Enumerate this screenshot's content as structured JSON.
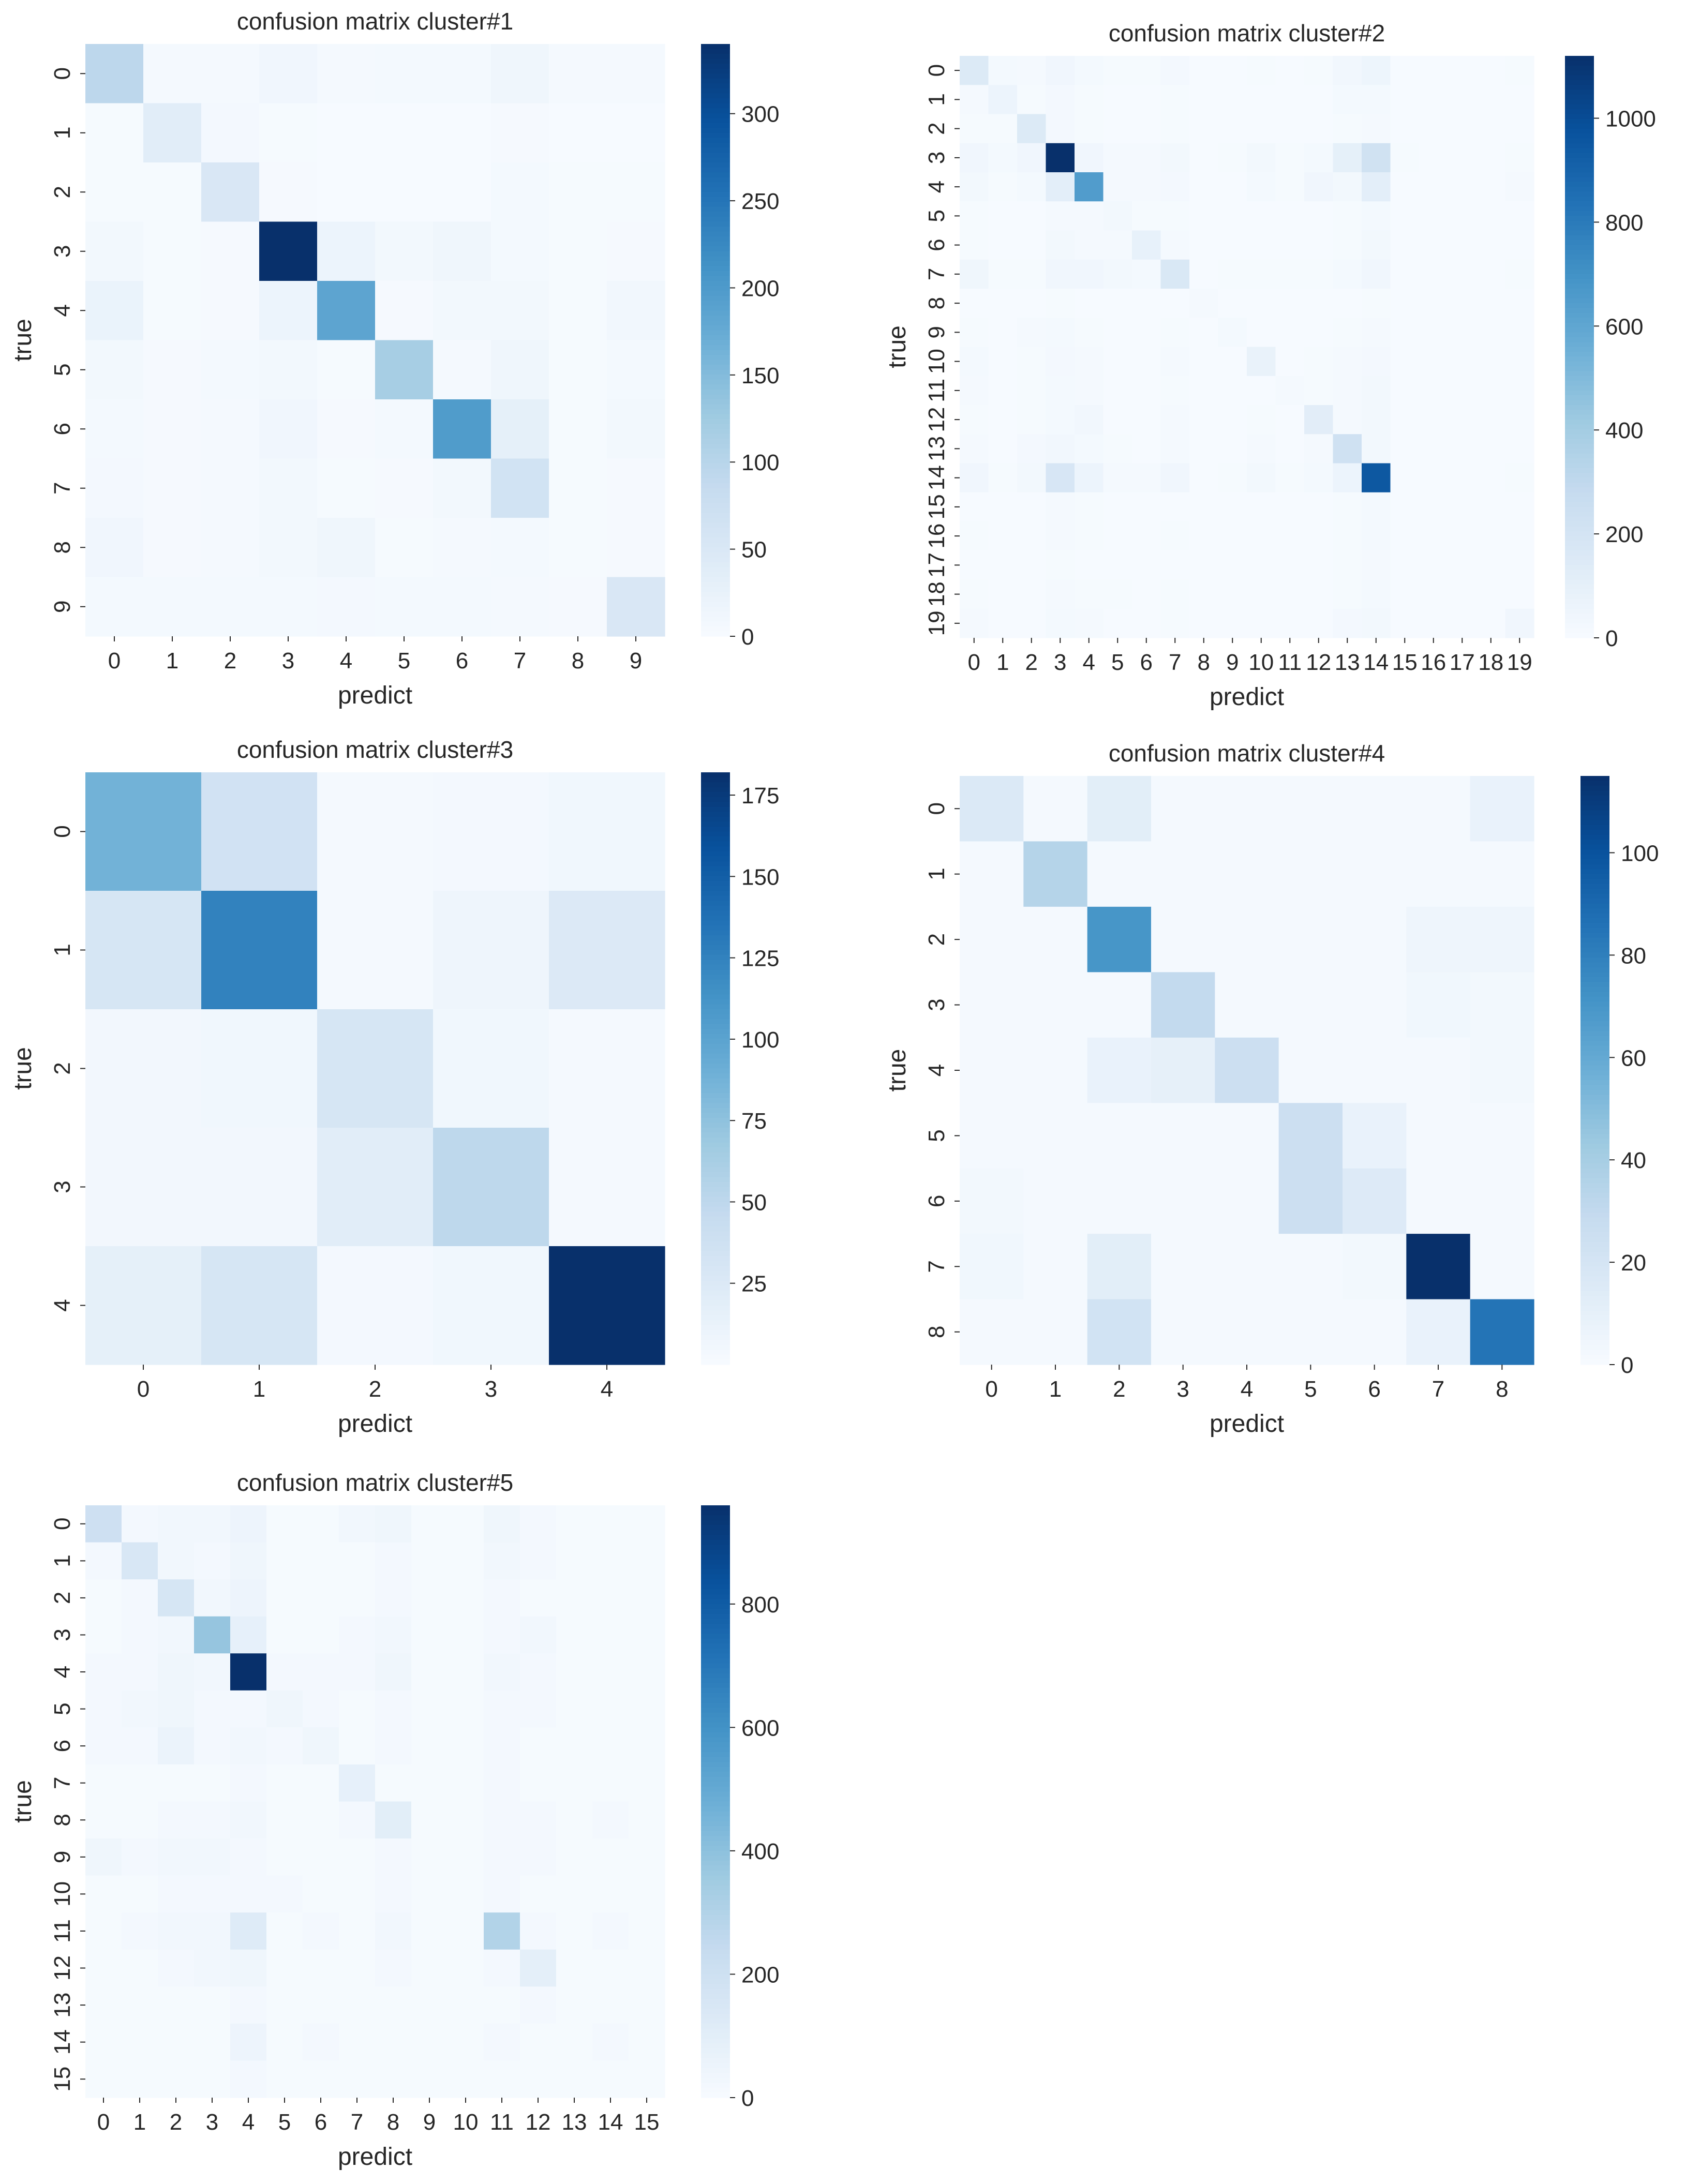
{
  "figure": {
    "colormap": [
      "#f7fbff",
      "#deebf7",
      "#c6dbef",
      "#9ecae1",
      "#6baed6",
      "#4292c6",
      "#2171b5",
      "#08519c",
      "#08306b"
    ],
    "tick_color": "#262626"
  },
  "chart_data": [
    {
      "type": "heatmap",
      "title": "confusion matrix cluster#1",
      "xlabel": "predict",
      "ylabel": "true",
      "x_tick_labels": [
        "0",
        "1",
        "2",
        "3",
        "4",
        "5",
        "6",
        "7",
        "8",
        "9"
      ],
      "y_tick_labels": [
        "0",
        "1",
        "2",
        "3",
        "4",
        "5",
        "6",
        "7",
        "8",
        "9"
      ],
      "vmin": 0,
      "vmax": 340,
      "colorbar_ticks": [
        0,
        50,
        100,
        150,
        200,
        250,
        300
      ],
      "matrix": [
        [
          95,
          5,
          5,
          12,
          5,
          6,
          6,
          14,
          5,
          5
        ],
        [
          3,
          38,
          7,
          3,
          2,
          2,
          2,
          4,
          2,
          2
        ],
        [
          3,
          3,
          52,
          4,
          2,
          2,
          2,
          6,
          3,
          3
        ],
        [
          9,
          3,
          4,
          340,
          18,
          8,
          14,
          6,
          3,
          4
        ],
        [
          22,
          3,
          4,
          18,
          185,
          4,
          8,
          8,
          3,
          10
        ],
        [
          8,
          4,
          6,
          8,
          3,
          118,
          5,
          14,
          3,
          6
        ],
        [
          6,
          4,
          5,
          12,
          4,
          6,
          198,
          30,
          3,
          9
        ],
        [
          7,
          4,
          5,
          9,
          3,
          4,
          8,
          65,
          3,
          4
        ],
        [
          12,
          4,
          5,
          9,
          14,
          3,
          5,
          6,
          3,
          4
        ],
        [
          6,
          6,
          6,
          6,
          7,
          6,
          6,
          5,
          4,
          52
        ]
      ]
    },
    {
      "type": "heatmap",
      "title": "confusion matrix cluster#2",
      "xlabel": "predict",
      "ylabel": "true",
      "x_tick_labels": [
        "0",
        "1",
        "2",
        "3",
        "4",
        "5",
        "6",
        "7",
        "8",
        "9",
        "10",
        "11",
        "12",
        "13",
        "14",
        "15",
        "16",
        "17",
        "18",
        "19"
      ],
      "y_tick_labels": [
        "0",
        "1",
        "2",
        "3",
        "4",
        "5",
        "6",
        "7",
        "8",
        "9",
        "10",
        "11",
        "12",
        "13",
        "14",
        "15",
        "16",
        "17",
        "18",
        "19"
      ],
      "vmin": 0,
      "vmax": 1120,
      "colorbar_ticks": [
        0,
        200,
        400,
        600,
        800,
        1000
      ],
      "matrix": [
        [
          150,
          20,
          15,
          40,
          20,
          10,
          10,
          25,
          5,
          5,
          10,
          5,
          10,
          35,
          55,
          5,
          5,
          5,
          5,
          10
        ],
        [
          15,
          60,
          10,
          25,
          10,
          5,
          5,
          10,
          5,
          5,
          5,
          5,
          5,
          20,
          20,
          5,
          5,
          5,
          5,
          5
        ],
        [
          10,
          10,
          150,
          25,
          10,
          5,
          5,
          10,
          5,
          5,
          5,
          5,
          5,
          10,
          15,
          5,
          5,
          5,
          5,
          5
        ],
        [
          40,
          20,
          40,
          1120,
          40,
          15,
          15,
          30,
          5,
          10,
          30,
          10,
          20,
          100,
          220,
          10,
          5,
          5,
          5,
          10
        ],
        [
          30,
          10,
          20,
          110,
          650,
          15,
          15,
          25,
          5,
          5,
          20,
          10,
          40,
          30,
          110,
          5,
          5,
          5,
          5,
          15
        ],
        [
          10,
          5,
          5,
          15,
          15,
          30,
          10,
          10,
          5,
          5,
          5,
          5,
          5,
          10,
          20,
          5,
          5,
          5,
          5,
          5
        ],
        [
          10,
          5,
          5,
          30,
          15,
          15,
          90,
          15,
          5,
          5,
          5,
          5,
          5,
          10,
          30,
          5,
          5,
          5,
          5,
          5
        ],
        [
          45,
          10,
          10,
          40,
          40,
          30,
          20,
          170,
          5,
          10,
          10,
          10,
          10,
          20,
          40,
          5,
          5,
          5,
          5,
          10
        ],
        [
          5,
          5,
          5,
          10,
          5,
          5,
          5,
          5,
          15,
          5,
          5,
          5,
          5,
          5,
          10,
          5,
          5,
          5,
          5,
          5
        ],
        [
          10,
          5,
          15,
          20,
          10,
          5,
          5,
          10,
          5,
          20,
          5,
          5,
          5,
          10,
          15,
          5,
          5,
          5,
          5,
          5
        ],
        [
          20,
          5,
          10,
          25,
          15,
          5,
          5,
          15,
          5,
          5,
          80,
          5,
          10,
          15,
          25,
          5,
          5,
          5,
          5,
          5
        ],
        [
          15,
          5,
          10,
          20,
          15,
          5,
          5,
          10,
          5,
          5,
          5,
          15,
          10,
          15,
          30,
          5,
          5,
          5,
          5,
          5
        ],
        [
          10,
          5,
          10,
          20,
          35,
          5,
          5,
          15,
          5,
          5,
          10,
          5,
          120,
          15,
          30,
          5,
          5,
          5,
          5,
          5
        ],
        [
          15,
          5,
          25,
          35,
          20,
          10,
          5,
          15,
          5,
          5,
          15,
          5,
          15,
          230,
          30,
          5,
          5,
          5,
          5,
          5
        ],
        [
          40,
          10,
          30,
          180,
          60,
          15,
          15,
          40,
          5,
          10,
          30,
          10,
          20,
          60,
          950,
          5,
          5,
          5,
          5,
          10
        ],
        [
          5,
          5,
          5,
          15,
          10,
          5,
          5,
          5,
          5,
          5,
          5,
          5,
          5,
          10,
          20,
          5,
          5,
          5,
          5,
          5
        ],
        [
          10,
          5,
          5,
          15,
          10,
          5,
          5,
          10,
          5,
          5,
          5,
          5,
          5,
          10,
          20,
          5,
          5,
          5,
          5,
          5
        ],
        [
          5,
          5,
          5,
          10,
          5,
          5,
          5,
          5,
          5,
          5,
          5,
          5,
          5,
          10,
          15,
          5,
          5,
          5,
          5,
          5
        ],
        [
          10,
          5,
          5,
          15,
          10,
          10,
          5,
          10,
          5,
          5,
          5,
          5,
          5,
          10,
          20,
          5,
          5,
          5,
          5,
          5
        ],
        [
          15,
          5,
          5,
          20,
          15,
          5,
          5,
          10,
          5,
          5,
          5,
          5,
          5,
          25,
          30,
          5,
          5,
          5,
          5,
          40
        ]
      ]
    },
    {
      "type": "heatmap",
      "title": "confusion matrix cluster#3",
      "xlabel": "predict",
      "ylabel": "true",
      "x_tick_labels": [
        "0",
        "1",
        "2",
        "3",
        "4"
      ],
      "y_tick_labels": [
        "0",
        "1",
        "2",
        "3",
        "4"
      ],
      "vmin": 0,
      "vmax": 182,
      "colorbar_ticks": [
        25,
        50,
        75,
        100,
        125,
        150,
        175
      ],
      "matrix": [
        [
          88,
          35,
          3,
          4,
          6
        ],
        [
          30,
          125,
          3,
          8,
          25
        ],
        [
          5,
          6,
          30,
          6,
          3
        ],
        [
          5,
          5,
          20,
          50,
          3
        ],
        [
          16,
          30,
          4,
          6,
          182
        ]
      ]
    },
    {
      "type": "heatmap",
      "title": "confusion matrix cluster#4",
      "xlabel": "predict",
      "ylabel": "true",
      "x_tick_labels": [
        "0",
        "1",
        "2",
        "3",
        "4",
        "5",
        "6",
        "7",
        "8"
      ],
      "y_tick_labels": [
        "0",
        "1",
        "2",
        "3",
        "4",
        "5",
        "6",
        "7",
        "8"
      ],
      "vmin": 0,
      "vmax": 115,
      "colorbar_ticks": [
        0,
        20,
        40,
        60,
        80,
        100
      ],
      "matrix": [
        [
          16,
          2,
          12,
          2,
          2,
          2,
          2,
          2,
          8
        ],
        [
          2,
          35,
          2,
          2,
          2,
          2,
          2,
          2,
          2
        ],
        [
          2,
          2,
          70,
          2,
          2,
          2,
          2,
          5,
          5
        ],
        [
          2,
          2,
          2,
          30,
          2,
          2,
          2,
          4,
          3
        ],
        [
          2,
          2,
          8,
          10,
          25,
          2,
          2,
          2,
          3
        ],
        [
          2,
          2,
          2,
          2,
          2,
          25,
          8,
          2,
          2
        ],
        [
          3,
          2,
          2,
          2,
          2,
          25,
          15,
          2,
          2
        ],
        [
          4,
          2,
          12,
          2,
          2,
          2,
          3,
          115,
          2
        ],
        [
          2,
          2,
          22,
          2,
          2,
          2,
          2,
          8,
          85
        ]
      ]
    },
    {
      "type": "heatmap",
      "title": "confusion matrix cluster#5",
      "xlabel": "predict",
      "ylabel": "true",
      "x_tick_labels": [
        "0",
        "1",
        "2",
        "3",
        "4",
        "5",
        "6",
        "7",
        "8",
        "9",
        "10",
        "11",
        "12",
        "13",
        "14",
        "15"
      ],
      "y_tick_labels": [
        "0",
        "1",
        "2",
        "3",
        "4",
        "5",
        "6",
        "7",
        "8",
        "9",
        "10",
        "11",
        "12",
        "13",
        "14",
        "15"
      ],
      "vmin": 0,
      "vmax": 960,
      "colorbar_ticks": [
        0,
        200,
        400,
        600,
        800
      ],
      "matrix": [
        [
          200,
          20,
          30,
          30,
          50,
          10,
          10,
          30,
          40,
          10,
          10,
          40,
          20,
          10,
          10,
          10
        ],
        [
          20,
          150,
          30,
          20,
          40,
          10,
          10,
          10,
          20,
          10,
          10,
          30,
          20,
          10,
          10,
          10
        ],
        [
          10,
          20,
          160,
          30,
          50,
          10,
          10,
          10,
          20,
          10,
          10,
          20,
          10,
          10,
          10,
          10
        ],
        [
          10,
          20,
          30,
          380,
          80,
          10,
          10,
          20,
          30,
          10,
          10,
          20,
          30,
          10,
          10,
          10
        ],
        [
          20,
          20,
          40,
          30,
          960,
          20,
          20,
          20,
          40,
          10,
          10,
          30,
          20,
          10,
          10,
          10
        ],
        [
          20,
          30,
          40,
          20,
          20,
          40,
          20,
          10,
          20,
          10,
          10,
          20,
          20,
          10,
          10,
          10
        ],
        [
          20,
          20,
          60,
          20,
          30,
          20,
          40,
          10,
          20,
          10,
          10,
          20,
          10,
          10,
          10,
          10
        ],
        [
          10,
          10,
          10,
          10,
          20,
          10,
          10,
          80,
          10,
          10,
          10,
          20,
          10,
          10,
          10,
          10
        ],
        [
          10,
          10,
          20,
          20,
          30,
          10,
          10,
          20,
          100,
          10,
          10,
          20,
          20,
          10,
          20,
          10
        ],
        [
          40,
          20,
          30,
          30,
          20,
          10,
          10,
          10,
          20,
          10,
          10,
          20,
          20,
          10,
          10,
          10
        ],
        [
          10,
          10,
          20,
          20,
          20,
          20,
          10,
          10,
          20,
          10,
          10,
          20,
          10,
          10,
          10,
          10
        ],
        [
          10,
          20,
          30,
          30,
          120,
          10,
          20,
          10,
          30,
          10,
          10,
          300,
          20,
          10,
          20,
          10
        ],
        [
          10,
          10,
          20,
          30,
          40,
          10,
          10,
          10,
          20,
          10,
          10,
          20,
          90,
          10,
          10,
          10
        ],
        [
          10,
          10,
          10,
          10,
          20,
          10,
          10,
          10,
          10,
          10,
          10,
          10,
          20,
          10,
          10,
          10
        ],
        [
          10,
          10,
          10,
          10,
          50,
          10,
          20,
          10,
          10,
          10,
          10,
          20,
          10,
          10,
          20,
          10
        ],
        [
          10,
          10,
          10,
          10,
          20,
          10,
          10,
          10,
          10,
          10,
          10,
          10,
          10,
          10,
          10,
          10
        ]
      ]
    }
  ]
}
